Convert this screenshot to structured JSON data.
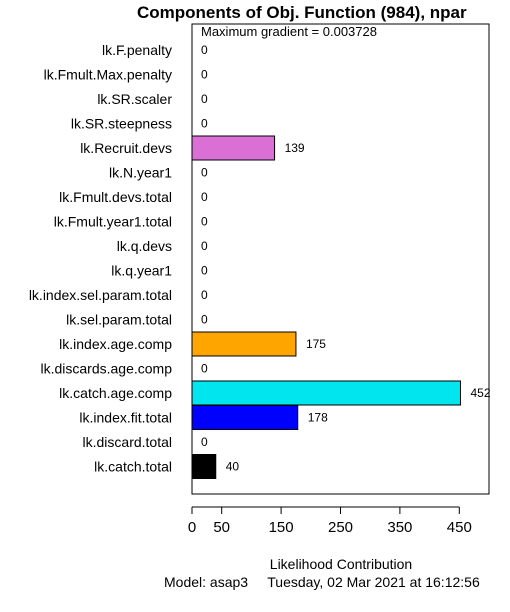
{
  "chart_data": {
    "type": "bar",
    "orientation": "horizontal",
    "title": "Components of Obj. Function (984), npar",
    "subtitle": "Maximum gradient = 0.003728",
    "xlabel": "Likelihood Contribution",
    "footer": "Model: asap3     Tuesday, 02 Mar 2021 at 16:12:56",
    "xlim": [
      0,
      500
    ],
    "xticks": [
      0,
      50,
      150,
      250,
      350,
      450
    ],
    "grid": false,
    "categories": [
      "lk.F.penalty",
      "lk.Fmult.Max.penalty",
      "lk.SR.scaler",
      "lk.SR.steepness",
      "lk.Recruit.devs",
      "lk.N.year1",
      "lk.Fmult.devs.total",
      "lk.Fmult.year1.total",
      "lk.q.devs",
      "lk.q.year1",
      "lk.index.sel.param.total",
      "lk.sel.param.total",
      "lk.index.age.comp",
      "lk.discards.age.comp",
      "lk.catch.age.comp",
      "lk.index.fit.total",
      "lk.discard.total",
      "lk.catch.total"
    ],
    "values": [
      0,
      0,
      0,
      0,
      139,
      0,
      0,
      0,
      0,
      0,
      0,
      0,
      175,
      0,
      452,
      178,
      0,
      40
    ],
    "value_labels": [
      "0",
      "0",
      "0",
      "0",
      "139",
      "0",
      "0",
      "0",
      "0",
      "0",
      "0",
      "0",
      "175",
      "0",
      "452",
      "178",
      "0",
      "40"
    ],
    "colors": [
      "#ffffff",
      "#ffffff",
      "#ffffff",
      "#ffffff",
      "#da70d6",
      "#ffffff",
      "#ffffff",
      "#ffffff",
      "#ffffff",
      "#ffffff",
      "#ffffff",
      "#ffffff",
      "#ffa500",
      "#ffffff",
      "#00e5ee",
      "#0000ff",
      "#ffffff",
      "#000000"
    ]
  }
}
